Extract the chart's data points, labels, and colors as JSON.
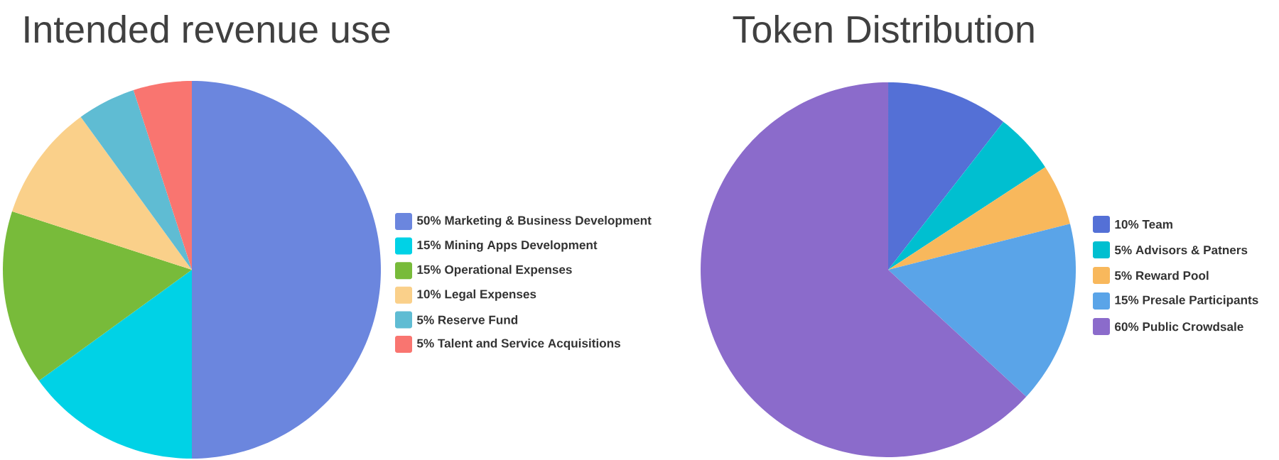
{
  "chart_data": [
    {
      "type": "pie",
      "title": "Intended revenue use",
      "categories": [
        "50% Marketing & Business Development",
        "15% Mining Apps Development",
        "15% Operational Expenses",
        "10% Legal Expenses",
        "5%  Reserve Fund",
        "5%  Talent and Service Acquisitions"
      ],
      "values": [
        50,
        15,
        15,
        10,
        5,
        5
      ],
      "colors": [
        "#6b86de",
        "#00d2e6",
        "#78bb3a",
        "#fad08a",
        "#5fbcd3",
        "#f97570"
      ],
      "legend": "right"
    },
    {
      "type": "pie",
      "title": "Token Distribution",
      "categories": [
        "10% Team",
        "5% Advisors & Patners",
        "5% Reward Pool",
        "15% Presale Participants",
        "60% Public Crowdsale"
      ],
      "values": [
        10,
        5,
        5,
        15,
        60
      ],
      "colors": [
        "#5470d6",
        "#00bfd0",
        "#f8b85c",
        "#5aa4e8",
        "#8b6bcb"
      ],
      "legend": "right"
    }
  ]
}
